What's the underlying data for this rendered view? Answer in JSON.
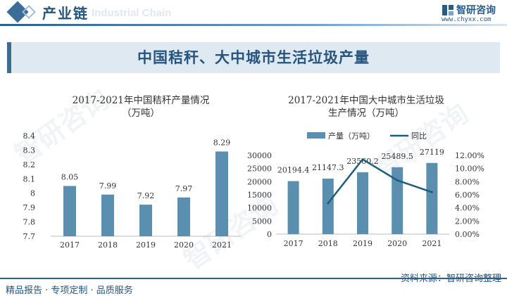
{
  "header": {
    "title": "产业链",
    "watermark": "Industrial Chain",
    "logo_name": "智研咨询",
    "logo_url": "www.chyxx.com"
  },
  "banner": {
    "text": "中国秸秆、大中城市生活垃圾产量"
  },
  "watermarks": [
    "智研咨询",
    "智研咨询",
    "智研咨询"
  ],
  "chart_data": [
    {
      "type": "bar",
      "title": "2017-2021年中国秸秆产量情况（万吨）",
      "title_line1": "2017-2021年中国秸秆产量情况",
      "title_line2": "（万吨）",
      "categories": [
        "2017",
        "2018",
        "2019",
        "2020",
        "2021"
      ],
      "values": [
        8.05,
        7.99,
        7.92,
        7.97,
        8.29
      ],
      "labels": [
        "8.05",
        "7.99",
        "7.92",
        "7.97",
        "8.29"
      ],
      "ylim": [
        7.7,
        8.4
      ],
      "yticks": [
        "7.7",
        "7.8",
        "7.9",
        "8",
        "8.1",
        "8.2",
        "8.3",
        "8.4"
      ],
      "ytick_values": [
        7.7,
        7.8,
        7.9,
        8.0,
        8.1,
        8.2,
        8.3,
        8.4
      ],
      "color": "#5b8fb0"
    },
    {
      "type": "bar+line",
      "title": "2017-2021年中国大中城市生活垃圾生产情况（万吨）",
      "title_line1": "2017-2021年中国大中城市生活垃圾",
      "title_line2": "生产情况（万吨）",
      "categories": [
        "2017",
        "2018",
        "2019",
        "2020",
        "2021"
      ],
      "series": [
        {
          "name": "产量（万吨）",
          "type": "bar",
          "axis": "left",
          "values": [
            20194.4,
            21147.3,
            23560.2,
            25489.5,
            27119
          ],
          "labels": [
            "20194.4",
            "21147.3",
            "23560.2",
            "25489.5",
            "27119"
          ],
          "color": "#5b8fb0"
        },
        {
          "name": "同比",
          "type": "line",
          "axis": "right",
          "values": [
            null,
            4.7,
            11.4,
            8.2,
            6.4
          ],
          "color": "#1f5e78"
        }
      ],
      "ylim_left": [
        0,
        30000
      ],
      "yticks_left": [
        "0",
        "5000",
        "10000",
        "15000",
        "20000",
        "25000",
        "30000"
      ],
      "ytick_left_values": [
        0,
        5000,
        10000,
        15000,
        20000,
        25000,
        30000
      ],
      "ylim_right": [
        0,
        12
      ],
      "yticks_right": [
        "0.00%",
        "2.00%",
        "4.00%",
        "6.00%",
        "8.00%",
        "10.00%",
        "12.00%"
      ],
      "ytick_right_values": [
        0,
        2,
        4,
        6,
        8,
        10,
        12
      ],
      "legend_position": "top"
    }
  ],
  "footer": {
    "left": "精品报告 · 专项定制 · 品质服务",
    "right": "资料来源：智研咨询整理"
  },
  "colors": {
    "brand": "#27547c",
    "bar": "#5b8fb0",
    "line": "#1f5e78",
    "banner_bg": "#dfe9f2"
  }
}
